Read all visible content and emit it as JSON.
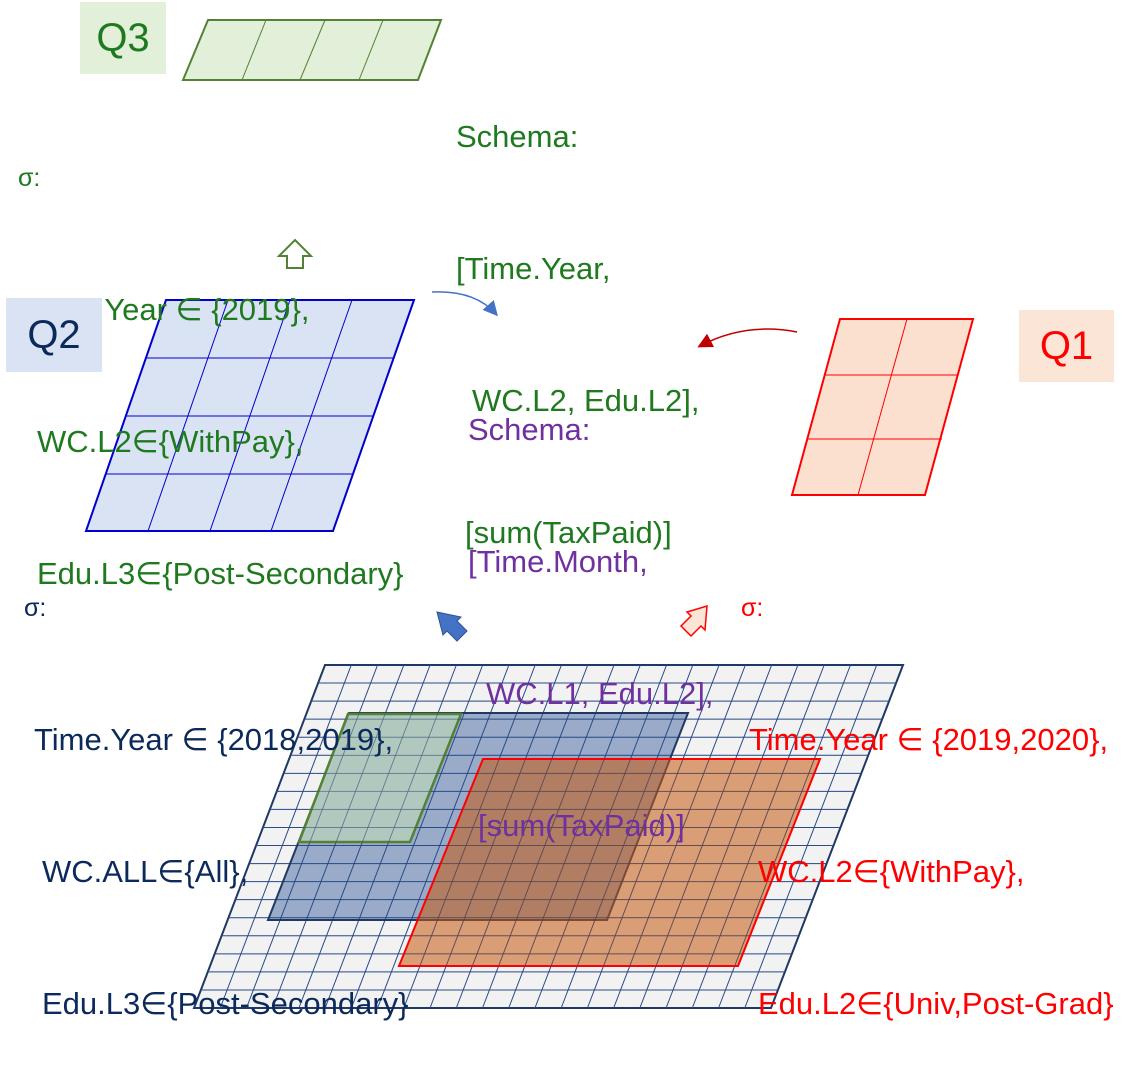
{
  "q3": {
    "label": "Q3",
    "sigma": [
      "σ:",
      "Time.Year ∈ {2019},",
      "WC.L2∈{WithPay},",
      "Edu.L3∈{Post-Secondary}"
    ],
    "schema": [
      "Schema:",
      "[Time.Year,",
      "WC.L2, Edu.L2],",
      "[sum(TaxPaid)]"
    ],
    "color": "#1f7a1f",
    "fill": "#e2efd9"
  },
  "q2": {
    "label": "Q2",
    "sigma": [
      "σ:",
      "Time.Year ∈ {2018,2019},",
      "WC.ALL∈{All},",
      "Edu.L3∈{Post-Secondary}"
    ],
    "schema": [
      "Schema:",
      "[Time.Month,",
      "WC.L1, Edu.L2],",
      "[sum(TaxPaid)]"
    ],
    "color": "#0b2a5b",
    "schema_color": "#7030a0",
    "fill": "#dae3f3"
  },
  "q1": {
    "label": "Q1",
    "sigma": [
      "σ:",
      "Time.Year ∈ {2019,2020},",
      "WC.L2∈{WithPay},",
      "Edu.L2∈{Univ,Post-Grad}"
    ],
    "color": "#ff0000",
    "fill": "#fbe5d6"
  }
}
